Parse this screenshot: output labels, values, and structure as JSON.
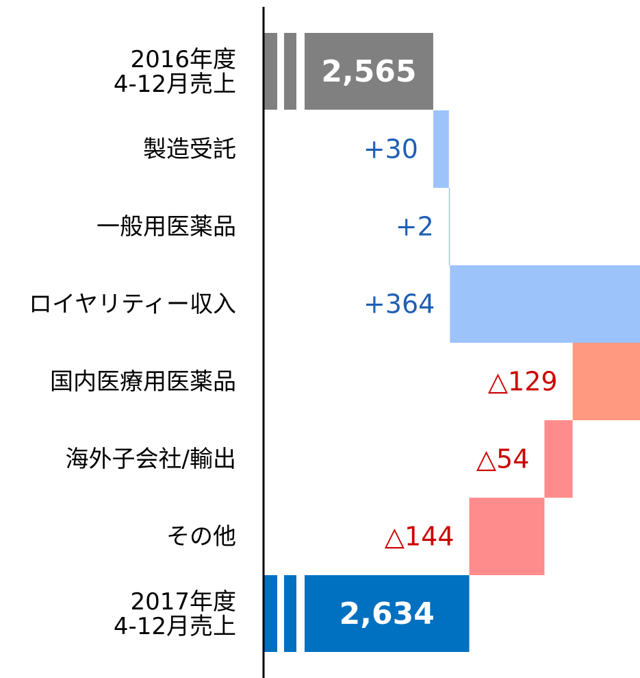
{
  "chart_data": {
    "type": "waterfall",
    "categories": [
      "2016年度\n4-12月売上",
      "製造受託",
      "一般用医薬品",
      "ロイヤリティー収入",
      "国内医療用医薬品",
      "海外子会社/輸出",
      "その他",
      "2017年度\n4-12月売上"
    ],
    "values": [
      2565,
      30,
      2,
      364,
      -129,
      -54,
      -144,
      2634
    ],
    "value_labels": [
      "2,565",
      "+30",
      "+2",
      "+364",
      "△129",
      "△54",
      "△144",
      "2,634"
    ],
    "measure": [
      "total",
      "relative",
      "relative",
      "relative",
      "relative",
      "relative",
      "relative",
      "total"
    ],
    "colors": [
      "#808080",
      "#9dc3fb",
      "#9dc3fb",
      "#9dc3fb",
      "#ff9980",
      "#ff8c8c",
      "#ff8c8c",
      "#0070c0"
    ],
    "xlim": [
      2240,
      2961
    ]
  }
}
